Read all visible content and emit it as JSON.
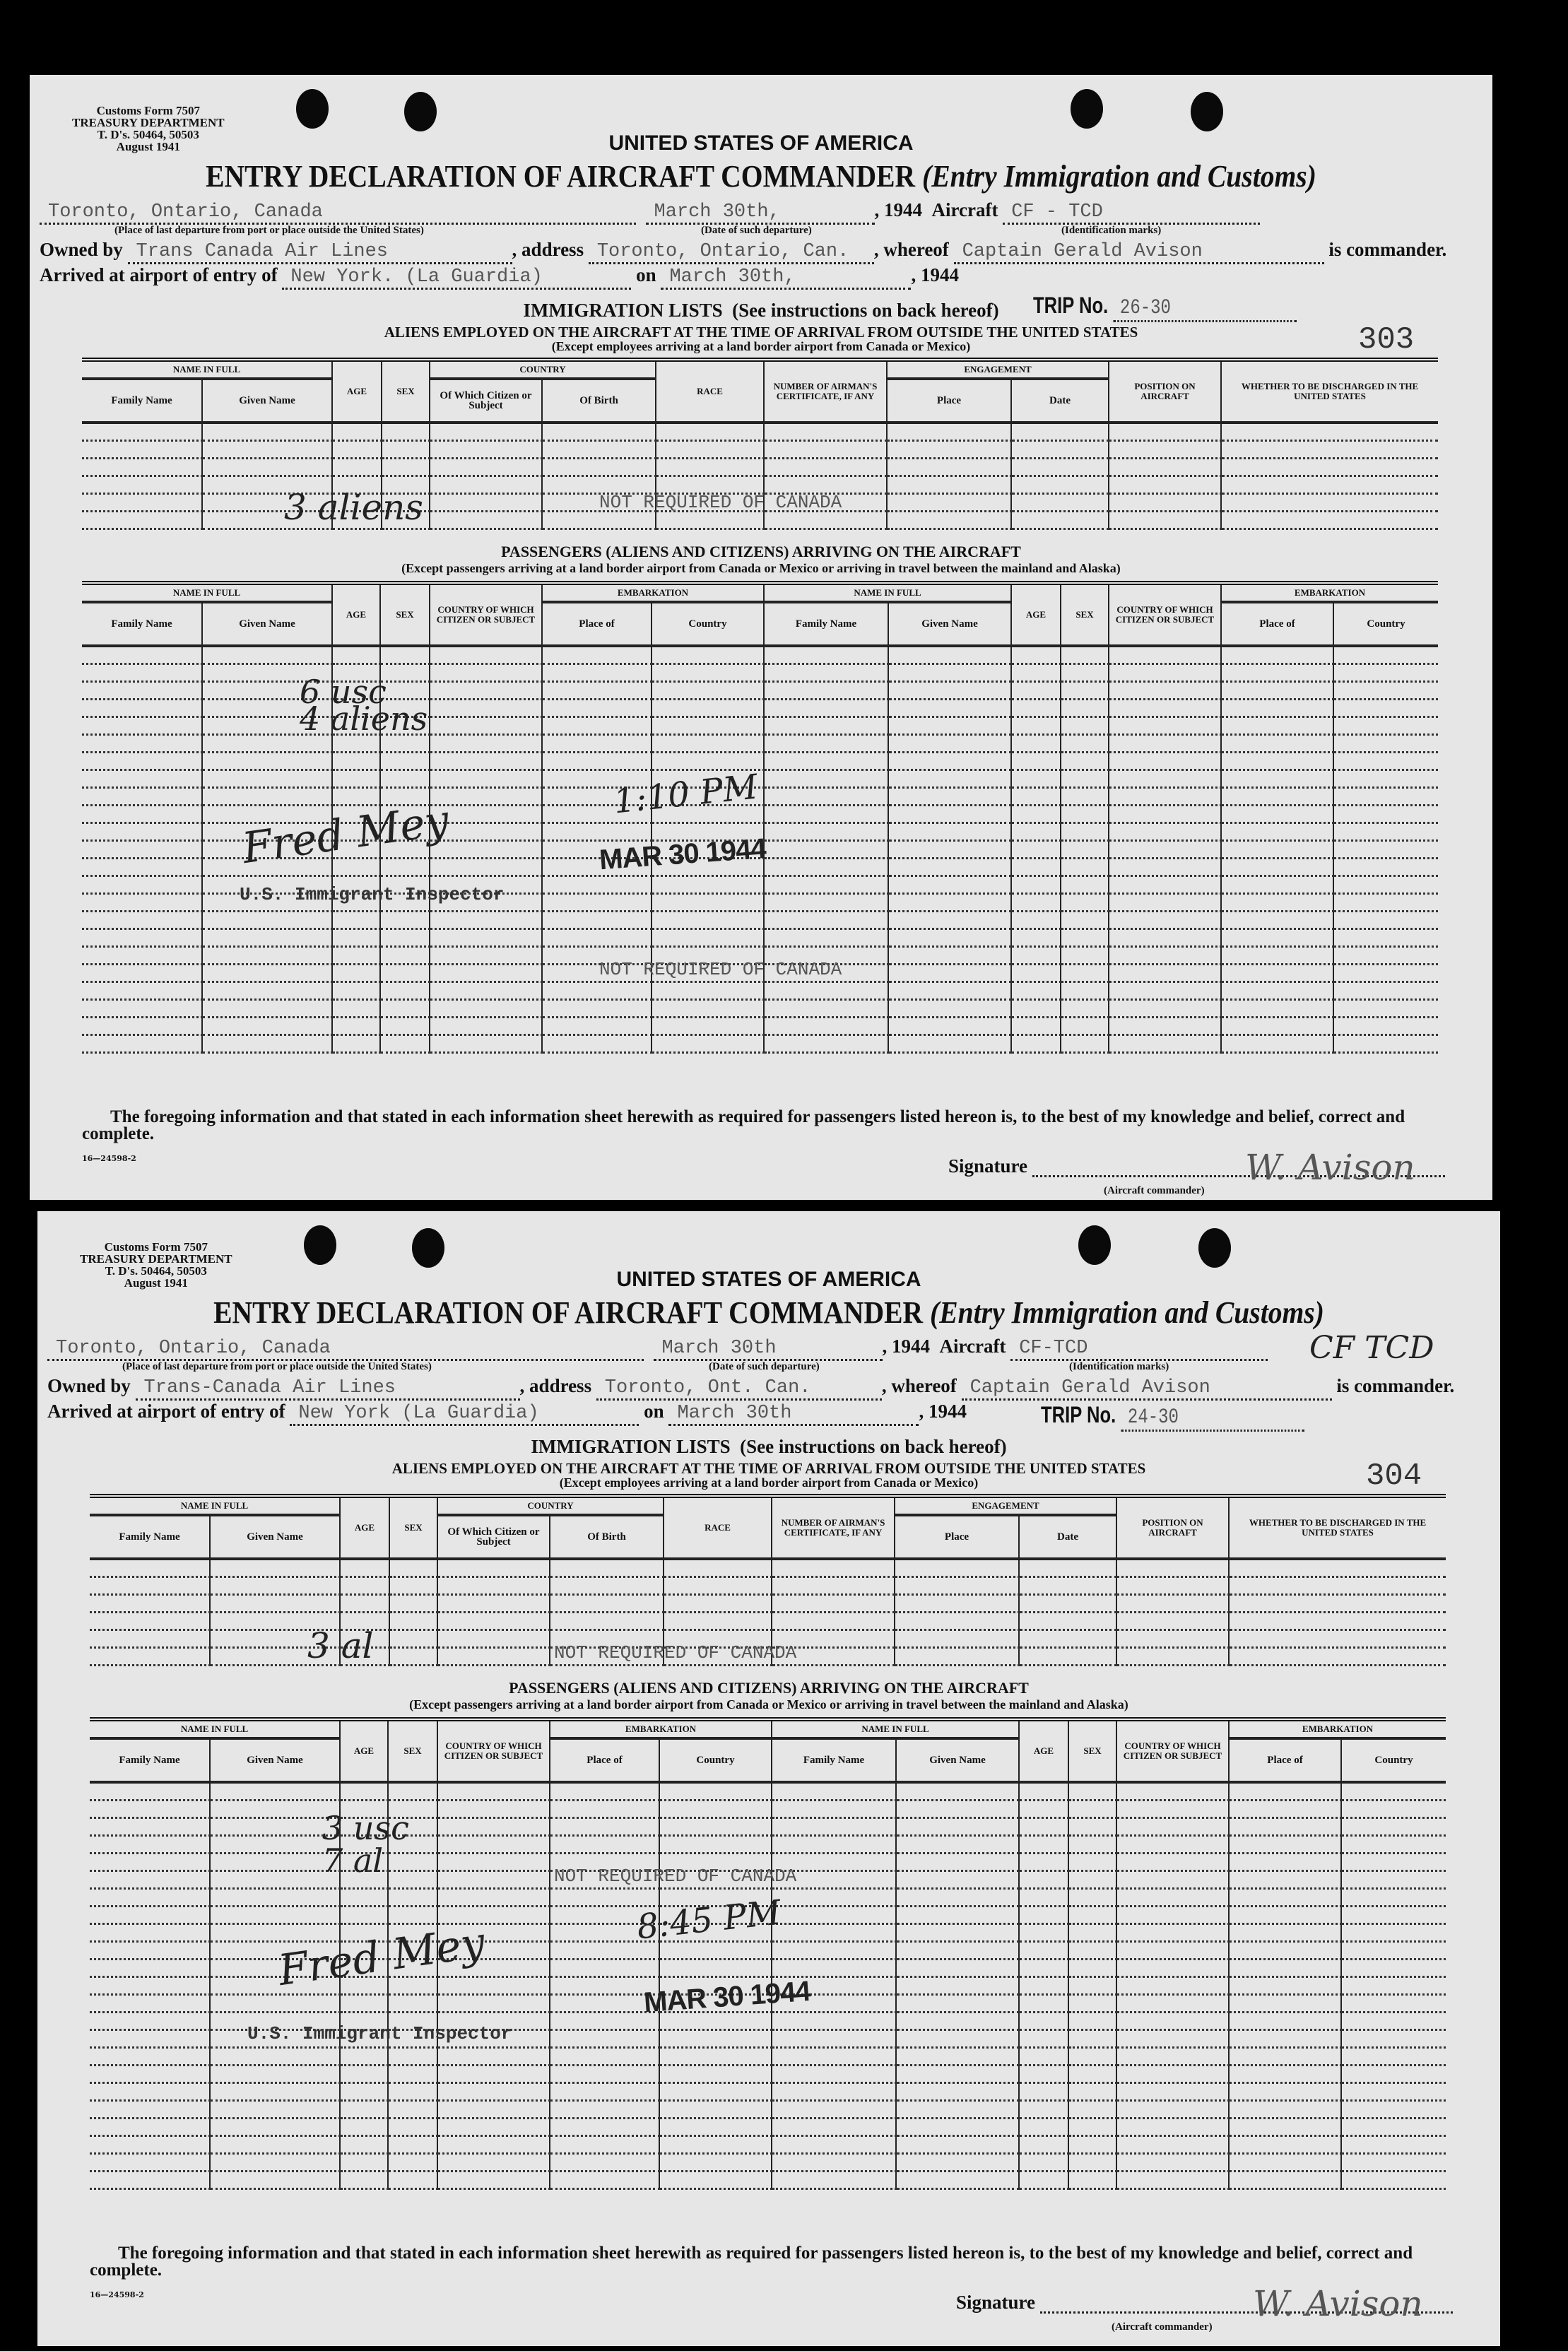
{
  "labels": {
    "form_info": [
      "Customs Form 7507",
      "TREASURY DEPARTMENT",
      "T. D's. 50464, 50503",
      "August 1941"
    ],
    "country_heading": "UNITED STATES OF AMERICA",
    "title": "ENTRY DECLARATION OF AIRCRAFT COMMANDER",
    "title_italic": "(Entry Immigration and Customs)",
    "place_label": "(Place of last departure from port or place outside the United States)",
    "date_label": "(Date of such departure)",
    "year_prefix": "194",
    "aircraft_label": "Aircraft",
    "id_label": "(Identification marks)",
    "owned_by_label": "Owned by",
    "address_label": "address",
    "whereof_label": "whereof",
    "is_commander": "is commander.",
    "arrived_label": "Arrived at airport of entry of",
    "on_label": "on",
    "trip_label": "TRIP No.",
    "immigration_lists": "IMMIGRATION LISTS",
    "instructions": "(See instructions on back hereof)",
    "aliens_heading": "ALIENS EMPLOYED ON THE AIRCRAFT AT THE TIME OF ARRIVAL FROM OUTSIDE THE UNITED STATES",
    "aliens_except": "(Except employees arriving at a land border airport from Canada or Mexico)",
    "crew_table": {
      "name_in_full": "Name in Full",
      "family_name": "Family Name",
      "given_name": "Given Name",
      "age": "Age",
      "sex": "Sex",
      "country": "Country",
      "citizen": "Of Which Citizen or Subject",
      "birth": "Of Birth",
      "race": "Race",
      "certificate": "Number of Airman's Certificate, If Any",
      "engagement": "Engagement",
      "place": "Place",
      "date": "Date",
      "position": "Position on Aircraft",
      "discharged": "Whether To Be Discharged in the United States"
    },
    "passengers_heading": "PASSENGERS (ALIENS AND CITIZENS) ARRIVING ON THE AIRCRAFT",
    "passengers_except": "(Except passengers arriving at a land border airport from Canada or Mexico or arriving in travel between the mainland and Alaska)",
    "pass_table": {
      "name_in_full": "Name in Full",
      "family_name": "Family Name",
      "given_name": "Given Name",
      "age": "Age",
      "sex": "Sex",
      "country_citizen": "Country of Which Citizen or Subject",
      "embarkation": "Embarkation",
      "place_of": "Place of",
      "country": "Country"
    },
    "foregoing": "The foregoing information and that stated in each information sheet herewith as required for passengers listed hereon is, to the best of my knowledge and belief, correct and complete.",
    "form_number": "16—24598-2",
    "signature_label": "Signature",
    "aircraft_commander": "(Aircraft commander)",
    "inspector": "U.S. Immigrant Inspector",
    "stamp": "MAR 30 1944"
  },
  "forms": [
    {
      "departure_place": "Toronto, Ontario, Canada",
      "departure_date": "March 30th,",
      "year_digit": "4",
      "aircraft": "CF - TCD",
      "owner": "Trans Canada Air Lines",
      "address": "Toronto, Ontario, Can.",
      "commander": "Captain Gerald Avison",
      "airport": "New York. (La Guardia)",
      "arrival_date": "March 30th,",
      "arrival_year_digit": "4",
      "trip": "26-30",
      "sheet_number": "303",
      "crew_note": "3 aliens",
      "crew_typed": "NOT REQUIRED OF CANADA",
      "pass_note_1": "6 usc",
      "pass_note_2": "4 aliens",
      "time_note": "1:10 PM",
      "pass_typed": "NOT REQUIRED OF CANADA",
      "inspector_signature": "Fred Mey",
      "commander_signature": "W. Avison"
    },
    {
      "departure_place": "Toronto, Ontario, Canada",
      "departure_date": "March 30th",
      "year_digit": "4",
      "aircraft": "CF-TCD",
      "aircraft_handwritten": "CF TCD",
      "owner": "Trans-Canada Air Lines",
      "address": "Toronto, Ont. Can.",
      "commander": "Captain Gerald Avison",
      "airport": "New York (La Guardia)",
      "arrival_date": "March 30th",
      "arrival_year_digit": "4",
      "trip": "24-30",
      "sheet_number": "304",
      "crew_note": "3 al",
      "crew_typed": "NOT REQUIRED OF CANADA",
      "pass_note_1": "3 usc",
      "pass_note_2": "7 al",
      "time_note": "8:45 PM",
      "pass_typed": "NOT REQUIRED OF CANADA",
      "inspector_signature": "Fred Mey",
      "commander_signature": "W. Avison"
    }
  ]
}
